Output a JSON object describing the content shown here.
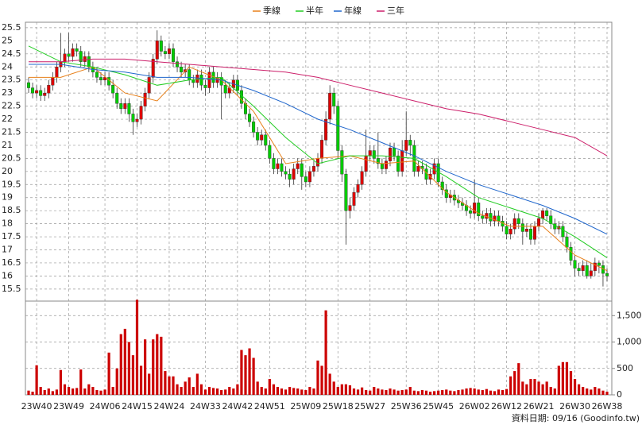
{
  "chart_data": {
    "type": "candlestick",
    "footer": "資料日期: 09/16  (Goodinfo.tw)",
    "grid": true,
    "up_color": "#dd0000",
    "down_color": "#00cc00",
    "volume_color": "#cc0000",
    "ylim": [
      15.07,
      25.71
    ],
    "yticks": [
      15.5,
      16,
      16.5,
      17,
      17.5,
      18,
      18.5,
      19,
      19.5,
      20,
      20.5,
      21,
      21.5,
      22,
      22.5,
      23,
      23.5,
      24,
      24.5,
      25,
      25.5
    ],
    "volume_ylim": [
      0,
      1760
    ],
    "volume_yticks": [
      0,
      500,
      {
        "value": 1000,
        "label": "1,000"
      },
      {
        "value": 1500,
        "label": "1,500"
      }
    ],
    "categories": [
      null,
      null,
      "23W40",
      null,
      null,
      null,
      null,
      null,
      null,
      null,
      "23W49",
      null,
      null,
      null,
      null,
      null,
      null,
      null,
      null,
      "24W06",
      null,
      null,
      null,
      null,
      null,
      null,
      null,
      "24W15",
      null,
      null,
      null,
      null,
      null,
      null,
      null,
      "24W24",
      null,
      null,
      null,
      null,
      null,
      null,
      null,
      null,
      "24W33",
      null,
      null,
      null,
      null,
      null,
      null,
      null,
      "24W42",
      null,
      null,
      null,
      null,
      null,
      null,
      null,
      "24W51",
      null,
      null,
      null,
      null,
      null,
      null,
      null,
      null,
      "25W09",
      null,
      null,
      null,
      null,
      null,
      null,
      null,
      "25W18",
      null,
      null,
      null,
      null,
      null,
      null,
      null,
      "25W27",
      null,
      null,
      null,
      null,
      null,
      null,
      null,
      null,
      "25W36",
      null,
      null,
      null,
      null,
      null,
      null,
      null,
      "25W45",
      null,
      null,
      null,
      null,
      null,
      null,
      null,
      null,
      "26W02",
      null,
      null,
      null,
      null,
      null,
      null,
      null,
      "26W12",
      null,
      null,
      null,
      null,
      null,
      null,
      null,
      "26W21",
      null,
      null,
      null,
      null,
      null,
      null,
      null,
      null,
      "26W30",
      null,
      null,
      null,
      null,
      null,
      null,
      null,
      "26W38"
    ],
    "open": [
      23.4,
      23.2,
      23.0,
      23.1,
      22.9,
      23.0,
      23.3,
      23.6,
      24.0,
      24.2,
      24.5,
      24.4,
      24.7,
      24.6,
      24.2,
      24.4,
      24.0,
      23.8,
      23.6,
      23.5,
      23.6,
      23.3,
      23.0,
      22.6,
      22.4,
      22.6,
      22.2,
      21.9,
      22.0,
      22.5,
      23.0,
      23.6,
      24.3,
      25.0,
      24.6,
      24.5,
      24.7,
      24.2,
      24.0,
      23.8,
      23.9,
      23.5,
      23.4,
      23.7,
      23.3,
      23.2,
      23.8,
      23.4,
      23.6,
      23.3,
      23.0,
      23.2,
      23.5,
      23.1,
      22.6,
      22.2,
      21.9,
      21.5,
      21.2,
      21.4,
      21.0,
      20.5,
      20.1,
      20.3,
      20.0,
      19.9,
      19.7,
      20.1,
      20.3,
      19.8,
      19.6,
      20.0,
      20.2,
      20.5,
      21.2,
      22.0,
      23.0,
      22.5,
      20.8,
      19.9,
      18.5,
      18.7,
      19.2,
      19.5,
      20.0,
      20.6,
      20.8,
      20.5,
      20.3,
      20.1,
      20.4,
      20.9,
      20.6,
      20.0,
      20.8,
      21.2,
      21.0,
      20.0,
      20.2,
      20.1,
      19.7,
      19.9,
      20.3,
      19.6,
      19.3,
      19.0,
      19.1,
      18.9,
      18.8,
      18.7,
      18.5,
      18.4,
      18.8,
      18.3,
      18.2,
      18.4,
      18.1,
      18.3,
      18.1,
      17.9,
      17.6,
      17.8,
      18.2,
      18.0,
      17.7,
      17.8,
      17.4,
      17.9,
      18.2,
      18.5,
      18.3,
      18.0,
      17.8,
      17.9,
      17.5,
      17.1,
      16.6,
      16.3,
      16.2,
      16.4,
      16.0,
      16.2,
      16.5,
      16.4,
      16.1
    ],
    "high": [
      23.6,
      23.4,
      23.3,
      23.3,
      23.2,
      23.5,
      23.8,
      24.2,
      25.3,
      24.7,
      25.3,
      24.9,
      24.9,
      24.8,
      24.6,
      24.6,
      24.2,
      24.0,
      23.8,
      23.8,
      23.8,
      23.5,
      23.2,
      22.8,
      22.8,
      22.8,
      22.4,
      22.2,
      22.7,
      23.2,
      23.8,
      24.5,
      25.4,
      25.2,
      24.8,
      24.9,
      24.9,
      24.4,
      24.2,
      24.1,
      24.1,
      23.7,
      23.9,
      23.9,
      23.5,
      24.0,
      24.0,
      23.8,
      23.8,
      23.5,
      23.4,
      23.7,
      23.7,
      23.3,
      22.8,
      22.4,
      22.1,
      21.7,
      21.6,
      21.6,
      21.2,
      20.7,
      20.5,
      20.5,
      20.2,
      20.1,
      20.3,
      20.5,
      20.5,
      20.0,
      20.2,
      20.4,
      20.7,
      21.4,
      22.3,
      23.3,
      23.2,
      22.7,
      21.0,
      20.1,
      19.0,
      19.4,
      19.7,
      20.2,
      21.6,
      21.0,
      21.0,
      21.5,
      20.5,
      20.6,
      21.1,
      21.1,
      20.8,
      21.2,
      22.3,
      21.4,
      21.2,
      20.4,
      20.4,
      20.3,
      20.1,
      20.5,
      20.5,
      19.8,
      19.5,
      19.3,
      19.3,
      19.1,
      19.0,
      18.9,
      18.7,
      19.7,
      19.0,
      18.5,
      18.6,
      18.6,
      18.5,
      18.5,
      18.3,
      18.1,
      18.0,
      18.4,
      18.4,
      18.2,
      18.0,
      18.0,
      18.1,
      18.4,
      18.6,
      18.6,
      18.5,
      18.2,
      18.1,
      18.1,
      17.7,
      17.3,
      16.8,
      16.5,
      16.6,
      16.6,
      16.5,
      16.7,
      16.6,
      16.6,
      16.3
    ],
    "low": [
      23.0,
      22.8,
      22.8,
      22.7,
      22.7,
      22.8,
      23.1,
      23.4,
      23.8,
      24.0,
      24.2,
      24.2,
      24.4,
      24.0,
      24.0,
      23.8,
      23.6,
      23.4,
      23.3,
      23.3,
      23.1,
      22.8,
      22.4,
      22.2,
      22.2,
      21.9,
      21.4,
      21.7,
      21.8,
      22.3,
      22.8,
      23.4,
      24.1,
      24.4,
      24.3,
      24.3,
      24.0,
      23.8,
      23.6,
      23.6,
      23.3,
      23.2,
      23.2,
      23.1,
      22.9,
      23.0,
      23.2,
      23.2,
      22.0,
      22.8,
      22.8,
      23.0,
      22.9,
      22.4,
      22.0,
      21.7,
      21.3,
      21.0,
      21.0,
      20.8,
      20.3,
      19.9,
      19.9,
      19.8,
      19.7,
      19.4,
      19.5,
      19.9,
      19.3,
      19.4,
      19.4,
      19.8,
      20.0,
      20.3,
      21.0,
      21.8,
      22.2,
      20.5,
      19.6,
      17.2,
      18.2,
      18.5,
      19.0,
      19.3,
      19.8,
      20.4,
      20.3,
      20.1,
      19.9,
      19.9,
      20.2,
      20.4,
      19.8,
      19.8,
      20.6,
      20.6,
      19.8,
      19.8,
      19.9,
      19.5,
      19.5,
      19.7,
      19.4,
      19.1,
      18.8,
      18.8,
      18.7,
      18.6,
      18.5,
      18.3,
      18.2,
      18.2,
      18.1,
      18.0,
      18.0,
      17.9,
      17.9,
      17.9,
      17.7,
      17.4,
      17.4,
      17.6,
      17.8,
      17.2,
      17.5,
      17.2,
      17.2,
      17.7,
      18.0,
      18.1,
      17.8,
      17.6,
      17.6,
      17.3,
      16.9,
      16.4,
      16.0,
      16.0,
      16.0,
      15.9,
      15.9,
      16.0,
      16.1,
      15.6,
      15.8
    ],
    "close": [
      23.2,
      23.0,
      23.1,
      22.9,
      23.0,
      23.3,
      23.6,
      24.0,
      24.2,
      24.5,
      24.4,
      24.7,
      24.6,
      24.2,
      24.4,
      24.0,
      23.8,
      23.6,
      23.5,
      23.6,
      23.3,
      23.0,
      22.6,
      22.4,
      22.6,
      22.2,
      21.9,
      22.0,
      22.5,
      23.0,
      23.6,
      24.3,
      25.0,
      24.6,
      24.5,
      24.7,
      24.2,
      24.0,
      23.8,
      23.9,
      23.5,
      23.4,
      23.7,
      23.3,
      23.2,
      23.8,
      23.4,
      23.6,
      23.3,
      23.0,
      23.2,
      23.5,
      23.1,
      22.6,
      22.2,
      21.9,
      21.5,
      21.2,
      21.4,
      21.0,
      20.5,
      20.1,
      20.3,
      20.0,
      19.9,
      19.7,
      20.1,
      20.3,
      19.8,
      19.6,
      20.0,
      20.2,
      20.5,
      21.2,
      22.0,
      23.0,
      22.5,
      20.8,
      19.9,
      18.5,
      18.7,
      19.2,
      19.5,
      20.0,
      20.6,
      20.8,
      20.5,
      20.3,
      20.1,
      20.4,
      20.9,
      20.6,
      20.0,
      20.8,
      21.2,
      21.0,
      20.0,
      20.2,
      20.1,
      19.7,
      19.9,
      20.3,
      19.6,
      19.3,
      19.0,
      19.1,
      18.9,
      18.8,
      18.7,
      18.5,
      18.4,
      18.8,
      18.3,
      18.2,
      18.4,
      18.1,
      18.3,
      18.1,
      17.9,
      17.6,
      17.8,
      18.2,
      18.0,
      17.7,
      17.8,
      17.4,
      17.9,
      18.2,
      18.5,
      18.3,
      18.0,
      17.8,
      17.9,
      17.5,
      17.1,
      16.6,
      16.3,
      16.2,
      16.4,
      16.0,
      16.2,
      16.5,
      16.4,
      16.1,
      16.0
    ],
    "volume": [
      80,
      60,
      560,
      150,
      90,
      120,
      70,
      100,
      470,
      200,
      150,
      120,
      130,
      480,
      120,
      200,
      150,
      90,
      80,
      100,
      800,
      150,
      500,
      1150,
      1250,
      1000,
      750,
      1800,
      550,
      1050,
      400,
      1050,
      1150,
      1100,
      450,
      350,
      350,
      200,
      150,
      250,
      330,
      150,
      400,
      200,
      100,
      150,
      130,
      120,
      90,
      100,
      150,
      120,
      200,
      850,
      750,
      880,
      700,
      250,
      150,
      120,
      300,
      200,
      150,
      120,
      100,
      150,
      130,
      120,
      100,
      90,
      150,
      120,
      650,
      550,
      1600,
      400,
      250,
      150,
      200,
      200,
      180,
      120,
      100,
      140,
      90,
      80,
      150,
      120,
      100,
      90,
      120,
      100,
      80,
      90,
      100,
      150,
      80,
      70,
      90,
      80,
      60,
      70,
      80,
      90,
      100,
      80,
      70,
      90,
      100,
      120,
      130,
      120,
      100,
      90,
      110,
      80,
      70,
      100,
      90,
      110,
      350,
      450,
      600,
      250,
      200,
      300,
      300,
      250,
      200,
      250,
      150,
      120,
      550,
      620,
      620,
      450,
      300,
      200,
      150,
      120,
      100,
      150,
      120,
      80,
      60
    ],
    "series": [
      {
        "name": "季線",
        "color": "#e8801a",
        "x": [
          0,
          8,
          16,
          24,
          32,
          40,
          48,
          56,
          64,
          72,
          80,
          88,
          96,
          104,
          112,
          120,
          128,
          136,
          144
        ],
        "values": [
          23.6,
          23.6,
          24.0,
          23.0,
          22.7,
          24.0,
          23.5,
          22.3,
          20.3,
          20.5,
          20.6,
          20.3,
          20.4,
          19.2,
          18.4,
          17.9,
          17.9,
          16.8,
          16.2
        ]
      },
      {
        "name": "半年",
        "color": "#22cc22",
        "x": [
          0,
          8,
          16,
          24,
          32,
          40,
          48,
          56,
          64,
          72,
          80,
          88,
          96,
          104,
          112,
          120,
          128,
          136,
          144
        ],
        "values": [
          24.8,
          24.2,
          24.0,
          23.7,
          23.3,
          23.5,
          23.6,
          22.5,
          21.3,
          20.3,
          20.6,
          20.6,
          20.5,
          19.8,
          19.0,
          18.6,
          18.2,
          17.5,
          16.7
        ]
      },
      {
        "name": "年線",
        "color": "#1f66cc",
        "x": [
          0,
          8,
          16,
          24,
          32,
          40,
          48,
          56,
          64,
          72,
          80,
          88,
          96,
          104,
          112,
          120,
          128,
          136,
          144
        ],
        "values": [
          24.1,
          24.1,
          23.9,
          23.8,
          23.6,
          23.6,
          23.5,
          23.1,
          22.6,
          22.0,
          21.6,
          21.1,
          20.6,
          20.0,
          19.5,
          19.1,
          18.7,
          18.2,
          17.6
        ]
      },
      {
        "name": "三年",
        "color": "#cc1f6a",
        "x": [
          0,
          8,
          16,
          24,
          32,
          40,
          48,
          56,
          64,
          72,
          80,
          88,
          96,
          104,
          112,
          120,
          128,
          136,
          144
        ],
        "values": [
          24.2,
          24.2,
          24.3,
          24.3,
          24.2,
          24.1,
          24.0,
          23.9,
          23.8,
          23.6,
          23.3,
          23.0,
          22.7,
          22.4,
          22.2,
          21.9,
          21.6,
          21.3,
          20.6
        ]
      }
    ]
  }
}
